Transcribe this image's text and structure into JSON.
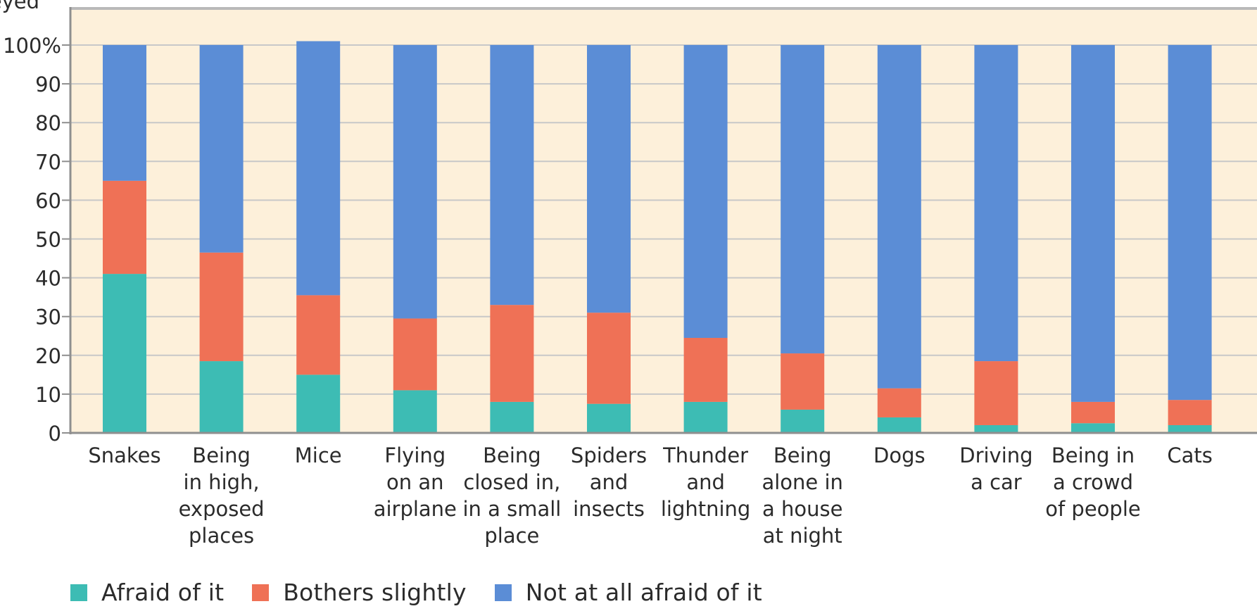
{
  "chart_data": {
    "type": "bar",
    "stacked": true,
    "ylabel": "veyed",
    "ylim": [
      0,
      100
    ],
    "yticks": [
      "0",
      "10",
      "20",
      "30",
      "40",
      "50",
      "60",
      "70",
      "80",
      "90",
      "100%"
    ],
    "grid": true,
    "legend_position": "bottom-left",
    "categories": [
      [
        "Snakes"
      ],
      [
        "Being",
        "in high,",
        "exposed",
        "places"
      ],
      [
        "Mice"
      ],
      [
        "Flying",
        "on an",
        "airplane"
      ],
      [
        "Being",
        "closed in,",
        "in a small",
        "place"
      ],
      [
        "Spiders",
        "and",
        "insects"
      ],
      [
        "Thunder",
        "and",
        "lightning"
      ],
      [
        "Being",
        "alone in",
        "a house",
        "at night"
      ],
      [
        "Dogs"
      ],
      [
        "Driving",
        "a car"
      ],
      [
        "Being in",
        "a crowd",
        "of people"
      ],
      [
        "Cats"
      ]
    ],
    "series": [
      {
        "name": "Afraid of it",
        "color": "#3dbcb4",
        "values": [
          41,
          18.5,
          15,
          11,
          8,
          7.5,
          8,
          6,
          4,
          2,
          2.5,
          2
        ]
      },
      {
        "name": "Bothers slightly",
        "color": "#ef7156",
        "values": [
          24,
          28,
          20.5,
          18.5,
          25,
          23.5,
          16.5,
          14.5,
          7.5,
          16.5,
          5.5,
          6.5
        ]
      },
      {
        "name": "Not at all afraid of it",
        "color": "#5b8dd6",
        "values": [
          35,
          53.5,
          65.5,
          70.5,
          67,
          69,
          75.5,
          79.5,
          88.5,
          81.5,
          92,
          91.5
        ]
      }
    ]
  },
  "style": {
    "plot_background": "#fdf0da",
    "gridline_color": "#c8c8c8",
    "axis_color": "#8f8f8f"
  }
}
